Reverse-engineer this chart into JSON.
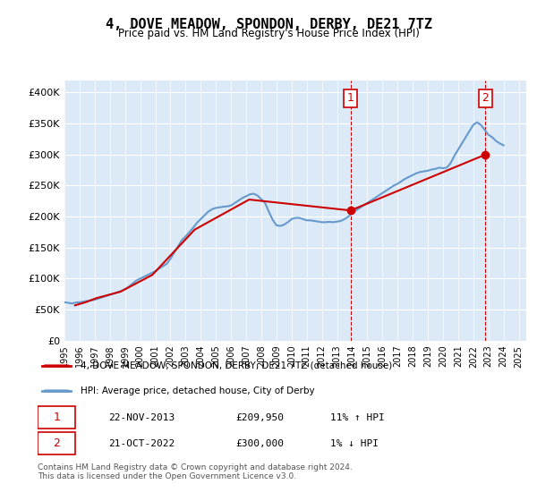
{
  "title": "4, DOVE MEADOW, SPONDON, DERBY, DE21 7TZ",
  "subtitle": "Price paid vs. HM Land Registry's House Price Index (HPI)",
  "ylabel_ticks": [
    "£0",
    "£50K",
    "£100K",
    "£150K",
    "£200K",
    "£250K",
    "£300K",
    "£350K",
    "£400K"
  ],
  "ytick_vals": [
    0,
    50000,
    100000,
    150000,
    200000,
    250000,
    300000,
    350000,
    400000
  ],
  "ylim": [
    0,
    420000
  ],
  "xlim_start": 1995.0,
  "xlim_end": 2025.5,
  "bg_color": "#dce9f7",
  "plot_bg_color": "#dce9f7",
  "line1_color": "#cc0000",
  "line2_color": "#6699cc",
  "vline1_x": 2013.9,
  "vline2_x": 2022.8,
  "vline_color": "#cc0000",
  "marker1_x": 2013.9,
  "marker1_y": 209950,
  "marker2_x": 2022.8,
  "marker2_y": 300000,
  "annotation1_label": "1",
  "annotation2_label": "2",
  "legend_line1": "4, DOVE MEADOW, SPONDON, DERBY, DE21 7TZ (detached house)",
  "legend_line2": "HPI: Average price, detached house, City of Derby",
  "table_row1_num": "1",
  "table_row1_date": "22-NOV-2013",
  "table_row1_price": "£209,950",
  "table_row1_hpi": "11% ↑ HPI",
  "table_row2_num": "2",
  "table_row2_date": "21-OCT-2022",
  "table_row2_price": "£300,000",
  "table_row2_hpi": "1% ↓ HPI",
  "footer": "Contains HM Land Registry data © Crown copyright and database right 2024.\nThis data is licensed under the Open Government Licence v3.0.",
  "hpi_data_x": [
    1995.0,
    1995.25,
    1995.5,
    1995.75,
    1996.0,
    1996.25,
    1996.5,
    1996.75,
    1997.0,
    1997.25,
    1997.5,
    1997.75,
    1998.0,
    1998.25,
    1998.5,
    1998.75,
    1999.0,
    1999.25,
    1999.5,
    1999.75,
    2000.0,
    2000.25,
    2000.5,
    2000.75,
    2001.0,
    2001.25,
    2001.5,
    2001.75,
    2002.0,
    2002.25,
    2002.5,
    2002.75,
    2003.0,
    2003.25,
    2003.5,
    2003.75,
    2004.0,
    2004.25,
    2004.5,
    2004.75,
    2005.0,
    2005.25,
    2005.5,
    2005.75,
    2006.0,
    2006.25,
    2006.5,
    2006.75,
    2007.0,
    2007.25,
    2007.5,
    2007.75,
    2008.0,
    2008.25,
    2008.5,
    2008.75,
    2009.0,
    2009.25,
    2009.5,
    2009.75,
    2010.0,
    2010.25,
    2010.5,
    2010.75,
    2011.0,
    2011.25,
    2011.5,
    2011.75,
    2012.0,
    2012.25,
    2012.5,
    2012.75,
    2013.0,
    2013.25,
    2013.5,
    2013.75,
    2014.0,
    2014.25,
    2014.5,
    2014.75,
    2015.0,
    2015.25,
    2015.5,
    2015.75,
    2016.0,
    2016.25,
    2016.5,
    2016.75,
    2017.0,
    2017.25,
    2017.5,
    2017.75,
    2018.0,
    2018.25,
    2018.5,
    2018.75,
    2019.0,
    2019.25,
    2019.5,
    2019.75,
    2020.0,
    2020.25,
    2020.5,
    2020.75,
    2021.0,
    2021.25,
    2021.5,
    2021.75,
    2022.0,
    2022.25,
    2022.5,
    2022.75,
    2023.0,
    2023.25,
    2023.5,
    2023.75,
    2024.0
  ],
  "hpi_data_y": [
    62000,
    61000,
    60000,
    61500,
    62000,
    63000,
    64000,
    65000,
    66000,
    68000,
    70000,
    72000,
    74000,
    76000,
    78000,
    80000,
    83000,
    87000,
    92000,
    97000,
    100000,
    103000,
    106000,
    109000,
    112000,
    116000,
    120000,
    124000,
    132000,
    142000,
    152000,
    162000,
    168000,
    175000,
    182000,
    190000,
    196000,
    202000,
    208000,
    212000,
    214000,
    215000,
    216000,
    216500,
    218000,
    222000,
    226000,
    230000,
    233000,
    236000,
    237000,
    234000,
    228000,
    222000,
    208000,
    195000,
    186000,
    185000,
    187000,
    191000,
    196000,
    198000,
    198000,
    196000,
    194000,
    194000,
    193000,
    192000,
    191000,
    191000,
    191500,
    191000,
    192000,
    193000,
    196000,
    200000,
    206000,
    210000,
    214000,
    218000,
    222000,
    226000,
    230000,
    234000,
    238000,
    242000,
    246000,
    250000,
    253000,
    257000,
    261000,
    264000,
    267000,
    270000,
    272000,
    273000,
    274000,
    276000,
    277000,
    279000,
    278000,
    279000,
    286000,
    298000,
    308000,
    318000,
    328000,
    338000,
    348000,
    352000,
    348000,
    340000,
    332000,
    328000,
    322000,
    318000,
    315000
  ],
  "price_data_x": [
    1995.7,
    1996.4,
    1997.1,
    1998.7,
    2000.8,
    2003.6,
    2007.2,
    2013.9,
    2022.8
  ],
  "price_data_y": [
    57000,
    62000,
    68500,
    79000,
    106000,
    179000,
    227500,
    209950,
    300000
  ]
}
